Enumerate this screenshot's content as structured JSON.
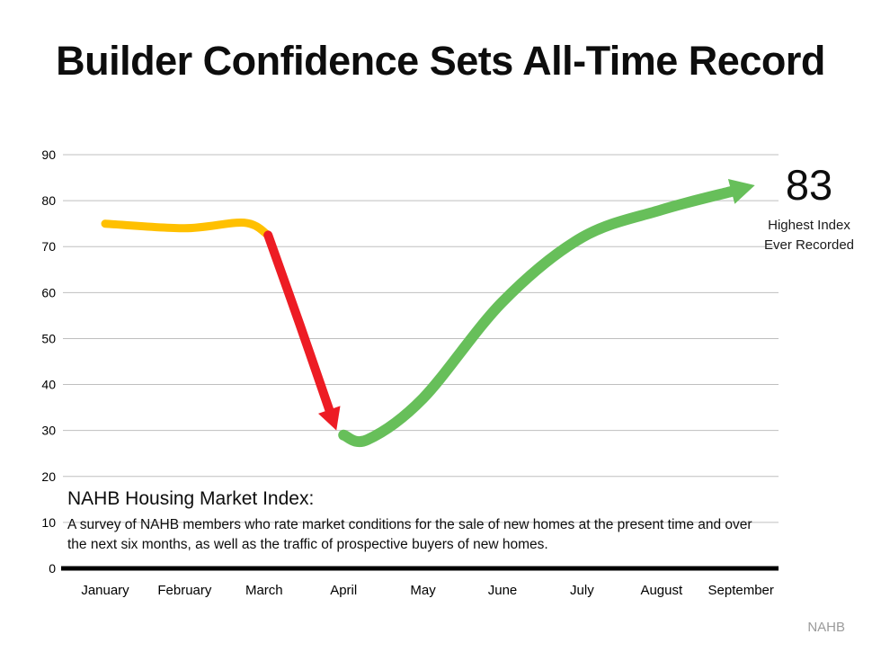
{
  "slide": {
    "title": "Builder Confidence Sets All-Time Record",
    "watermark": "NAHB"
  },
  "callout": {
    "value": "83",
    "line1": "Highest Index",
    "line2": "Ever Recorded"
  },
  "note": {
    "heading": "NAHB Housing Market Index:",
    "body": "A survey of NAHB members who rate market conditions for the sale of new homes at the present time and over the next six months, as well as the traffic of prospective buyers of new homes."
  },
  "chart_data": {
    "type": "line",
    "title": "Builder Confidence Sets All-Time Record",
    "categories": [
      "January",
      "February",
      "March",
      "April",
      "May",
      "June",
      "July",
      "August",
      "September"
    ],
    "series": [
      {
        "name": "NAHB Housing Market Index",
        "values": [
          75,
          74,
          72,
          30,
          37,
          58,
          72,
          78,
          83
        ]
      }
    ],
    "ylim": [
      0,
      90
    ],
    "yticks": [
      0,
      10,
      20,
      30,
      40,
      50,
      60,
      70,
      80,
      90
    ],
    "grid": true,
    "legend": "none",
    "annotations": [
      "83",
      "Highest Index",
      "Ever Recorded"
    ],
    "colors": {
      "grid": "#bfbfbf",
      "axis": "#000000",
      "steady": "#ffc000",
      "decline": "#ed1c24",
      "recovery": "#67bf5a"
    },
    "segments": [
      {
        "name": "steady",
        "color": "#ffc000",
        "width": 9,
        "arrow": false,
        "arrow_size": 0,
        "points": [
          [
            0,
            75
          ],
          [
            1,
            74
          ],
          [
            1.75,
            75.2
          ],
          [
            2.05,
            72.5
          ]
        ]
      },
      {
        "name": "decline",
        "color": "#ed1c24",
        "width": 10,
        "arrow": true,
        "arrow_size": 18,
        "points": [
          [
            2.05,
            72.5
          ],
          [
            2.45,
            53
          ],
          [
            2.82,
            34.5
          ]
        ]
      },
      {
        "name": "recovery",
        "color": "#67bf5a",
        "width": 12,
        "arrow": true,
        "arrow_size": 20,
        "points": [
          [
            3.0,
            29
          ],
          [
            3.3,
            28
          ],
          [
            4,
            37
          ],
          [
            5,
            58
          ],
          [
            6,
            72
          ],
          [
            7,
            78
          ],
          [
            7.88,
            82
          ]
        ]
      }
    ]
  }
}
